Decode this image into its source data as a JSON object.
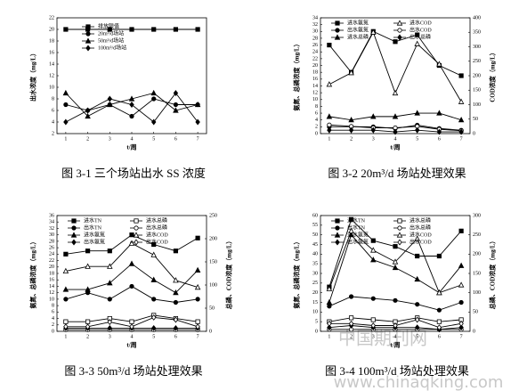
{
  "chart_data": [
    {
      "type": "line",
      "caption": "图 3-1  三个场站出水 SS 浓度",
      "ylabel": "出水浓度（mg/L）",
      "xlabel": "t/周",
      "x": [
        1,
        2,
        3,
        4,
        5,
        6,
        7
      ],
      "xlim": [
        0.6,
        7.4
      ],
      "xticks": [
        1,
        2,
        3,
        4,
        5,
        6,
        7
      ],
      "ylim": [
        2,
        22
      ],
      "yticks": [
        2,
        4,
        6,
        8,
        10,
        12,
        14,
        16,
        18,
        20,
        22
      ],
      "series": [
        {
          "name": "排放限值",
          "color": "#000000",
          "marker": "square",
          "values": [
            20,
            20,
            20,
            20,
            20,
            20,
            20
          ]
        },
        {
          "name": "20m³/d场站",
          "color": "#000000",
          "marker": "circle",
          "values": [
            7,
            6,
            7,
            5,
            8,
            7,
            7
          ]
        },
        {
          "name": "50m³/d场站",
          "color": "#000000",
          "marker": "triangle",
          "values": [
            9,
            5,
            7,
            8,
            9,
            6,
            7
          ]
        },
        {
          "name": "100m³/d场站",
          "color": "#000000",
          "marker": "diamond",
          "values": [
            4,
            6,
            8,
            7,
            4,
            9,
            4
          ]
        }
      ]
    },
    {
      "type": "line",
      "caption": "图 3-2  20m³/d 场站处理效果",
      "ylabel": "氨氮、总磷浓度（mg/L）",
      "y2label": "COD浓度（mg/L）",
      "xlabel": "t/周",
      "x": [
        1,
        2,
        3,
        4,
        5,
        6,
        7
      ],
      "xlim": [
        0.6,
        7.4
      ],
      "xticks": [
        1,
        2,
        3,
        4,
        5,
        6,
        7
      ],
      "ylim": [
        0,
        34
      ],
      "yticks": [
        0,
        2,
        4,
        6,
        8,
        10,
        12,
        14,
        16,
        18,
        20,
        22,
        24,
        26,
        28,
        30,
        32,
        34
      ],
      "y2lim": [
        0,
        400
      ],
      "y2ticks": [
        0,
        50,
        100,
        150,
        200,
        250,
        300,
        350,
        400
      ],
      "series": [
        {
          "name": "进水氨氮",
          "color": "#000000",
          "marker": "square",
          "values": [
            26,
            18,
            30,
            27,
            29,
            20,
            17
          ]
        },
        {
          "name": "进水COD",
          "color": "#000000",
          "marker": "open-triangle",
          "axis": "y2",
          "values": [
            170,
            210,
            350,
            140,
            310,
            240,
            110
          ]
        },
        {
          "name": "出水氨氮",
          "color": "#000000",
          "marker": "circle",
          "values": [
            2,
            2,
            2,
            1.5,
            2.5,
            1.5,
            1
          ]
        },
        {
          "name": "出水COD",
          "color": "#000000",
          "marker": "open-circle",
          "axis": "y2",
          "values": [
            30,
            25,
            20,
            20,
            25,
            15,
            10
          ]
        },
        {
          "name": "进水总磷",
          "color": "#000000",
          "marker": "triangle",
          "values": [
            5,
            4,
            5,
            5,
            6,
            6,
            4
          ]
        },
        {
          "name": "出水总磷",
          "color": "#000000",
          "marker": "diamond",
          "values": [
            1,
            1,
            1,
            0.5,
            1,
            0.5,
            0.5
          ]
        }
      ]
    },
    {
      "type": "line",
      "caption": "图 3-3  50m³/d 场站处理效果",
      "ylabel": "氨氮、总磷浓度（mg/L）",
      "y2label": "总磷、COD浓度（mg/L）",
      "xlabel": "t/周",
      "x": [
        1,
        2,
        3,
        4,
        5,
        6,
        7
      ],
      "xlim": [
        0.6,
        7.4
      ],
      "xticks": [
        1,
        2,
        3,
        4,
        5,
        6,
        7
      ],
      "ylim": [
        0,
        36
      ],
      "yticks": [
        0,
        2,
        4,
        6,
        8,
        10,
        12,
        14,
        16,
        18,
        20,
        22,
        24,
        26,
        28,
        30,
        32,
        34,
        36
      ],
      "y2lim": [
        0,
        250
      ],
      "y2ticks": [
        0,
        50,
        100,
        150,
        200,
        250
      ],
      "series": [
        {
          "name": "进水TN",
          "color": "#000000",
          "marker": "square",
          "values": [
            24,
            25,
            25,
            30,
            27,
            25,
            29
          ]
        },
        {
          "name": "进水总磷",
          "color": "#000000",
          "marker": "open-square",
          "values": [
            3,
            3,
            4,
            3,
            5,
            4,
            3
          ]
        },
        {
          "name": "出水TN",
          "color": "#000000",
          "marker": "circle",
          "values": [
            10,
            12,
            10,
            14,
            10,
            9,
            10
          ]
        },
        {
          "name": "出水总磷",
          "color": "#000000",
          "marker": "open-circle",
          "values": [
            0.5,
            0.5,
            0.5,
            0.5,
            0.5,
            0.5,
            0.5
          ]
        },
        {
          "name": "进水氨氮",
          "color": "#000000",
          "marker": "triangle",
          "values": [
            13,
            13,
            15,
            21,
            16,
            12,
            19
          ]
        },
        {
          "name": "进水COD",
          "color": "#000000",
          "marker": "open-triangle",
          "axis": "y2",
          "values": [
            130,
            140,
            140,
            190,
            165,
            110,
            95
          ]
        },
        {
          "name": "出水氨氮",
          "color": "#000000",
          "marker": "diamond",
          "values": [
            1,
            1,
            1,
            1,
            1,
            1,
            1
          ]
        },
        {
          "name": "出水COD",
          "color": "#000000",
          "marker": "open-diamond",
          "axis": "y2",
          "values": [
            10,
            10,
            20,
            10,
            30,
            25,
            10
          ]
        }
      ]
    },
    {
      "type": "line",
      "caption": "图 3-4  100m³/d 场站处理效果",
      "ylabel": "氨氮、总磷浓度（mg/L）",
      "y2label": "总磷、COD浓度（mg/L）",
      "xlabel": "t/周",
      "x": [
        1,
        2,
        3,
        4,
        5,
        6,
        7
      ],
      "xlim": [
        0.6,
        7.4
      ],
      "xticks": [
        1,
        2,
        3,
        4,
        5,
        6,
        7
      ],
      "ylim": [
        0,
        60
      ],
      "yticks": [
        0,
        5,
        10,
        15,
        20,
        25,
        30,
        35,
        40,
        45,
        50,
        55,
        60
      ],
      "y2lim": [
        0,
        300
      ],
      "y2ticks": [
        0,
        50,
        100,
        150,
        200,
        250,
        300
      ],
      "series": [
        {
          "name": "进水TN",
          "color": "#000000",
          "marker": "square",
          "values": [
            23,
            58,
            47,
            44,
            39,
            39,
            52
          ]
        },
        {
          "name": "进水总磷",
          "color": "#000000",
          "marker": "open-square",
          "values": [
            5,
            7,
            6,
            5,
            7,
            5,
            6
          ]
        },
        {
          "name": "出水TN",
          "color": "#000000",
          "marker": "circle",
          "values": [
            13,
            18,
            17,
            16,
            14,
            11,
            15
          ]
        },
        {
          "name": "出水总磷",
          "color": "#000000",
          "marker": "open-circle",
          "values": [
            1,
            1,
            1,
            1,
            1,
            1,
            1
          ]
        },
        {
          "name": "进水氨氮",
          "color": "#000000",
          "marker": "triangle",
          "values": [
            15,
            50,
            37,
            33,
            27,
            20,
            34
          ]
        },
        {
          "name": "进水COD",
          "color": "#000000",
          "marker": "open-triangle",
          "axis": "y2",
          "values": [
            110,
            260,
            210,
            180,
            240,
            100,
            120
          ]
        },
        {
          "name": "出水氨氮",
          "color": "#000000",
          "marker": "diamond",
          "values": [
            2,
            3,
            2,
            2,
            2,
            1,
            2
          ]
        },
        {
          "name": "出水COD",
          "color": "#000000",
          "marker": "open-diamond",
          "axis": "y2",
          "values": [
            20,
            20,
            15,
            15,
            30,
            10,
            20
          ]
        }
      ]
    }
  ],
  "watermark": {
    "site": "中国期刊网",
    "url": "www.chinaqking.com"
  }
}
